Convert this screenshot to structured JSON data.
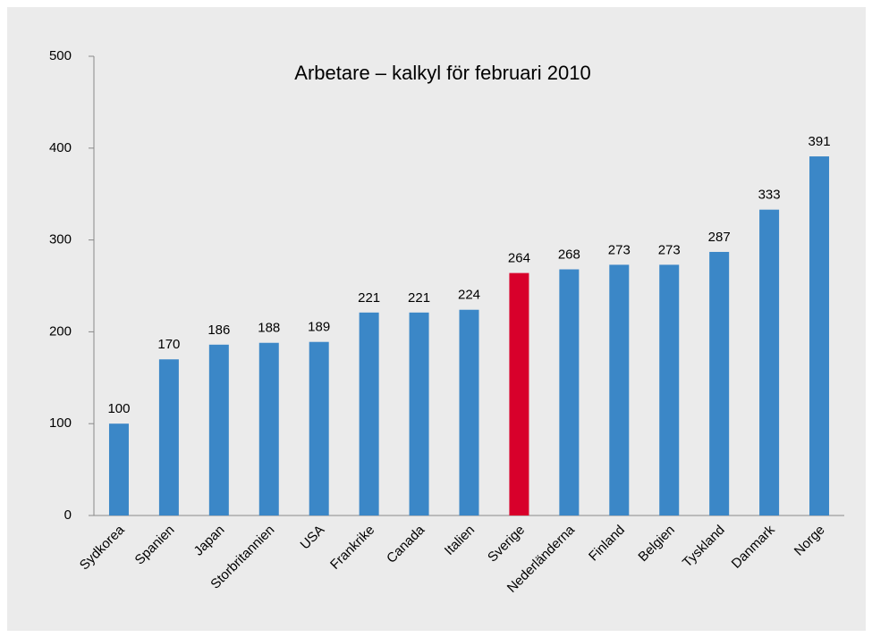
{
  "chart_data": {
    "type": "bar",
    "title": "Arbetare – kalkyl för februari 2010",
    "categories": [
      "Sydkorea",
      "Spanien",
      "Japan",
      "Storbritannien",
      "USA",
      "Frankrike",
      "Canada",
      "Italien",
      "Sverige",
      "Nederländerna",
      "Finland",
      "Belgien",
      "Tyskland",
      "Danmark",
      "Norge"
    ],
    "values": [
      100,
      170,
      186,
      188,
      189,
      221,
      221,
      224,
      264,
      268,
      273,
      273,
      287,
      333,
      391
    ],
    "colors": [
      "#3b87c7",
      "#3b87c7",
      "#3b87c7",
      "#3b87c7",
      "#3b87c7",
      "#3b87c7",
      "#3b87c7",
      "#3b87c7",
      "#d8002b",
      "#3b87c7",
      "#3b87c7",
      "#3b87c7",
      "#3b87c7",
      "#3b87c7",
      "#3b87c7"
    ],
    "ylim": [
      0,
      500
    ],
    "yticks": [
      0,
      100,
      200,
      300,
      400,
      500
    ],
    "grid": false
  }
}
